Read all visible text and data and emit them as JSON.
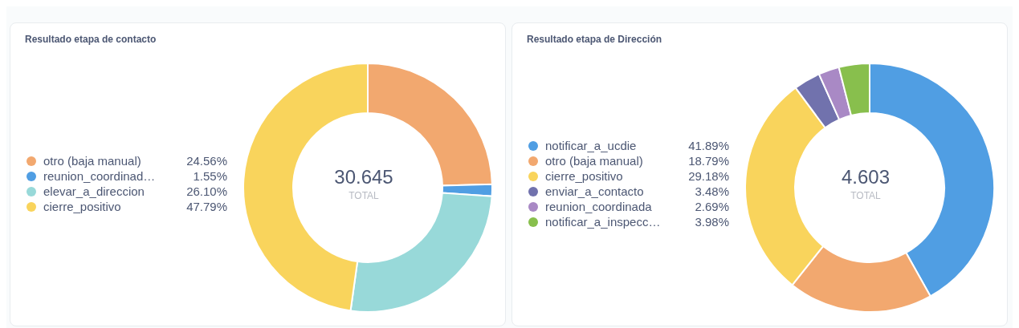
{
  "chart_data": [
    {
      "type": "donut",
      "title": "Resultado etapa de contacto",
      "categories": [
        "otro (baja manual)",
        "reunion_coordinad…",
        "elevar_a_direccion",
        "cierre_positivo"
      ],
      "values": [
        24.56,
        1.55,
        26.1,
        47.79
      ],
      "value_labels": [
        "24.56%",
        "1.55%",
        "26.10%",
        "47.79%"
      ],
      "colors": [
        "#f2a86f",
        "#509ee3",
        "#98d9d9",
        "#f9d45c"
      ],
      "annotations": [
        "30.645",
        "TOTAL"
      ],
      "legend": "left"
    },
    {
      "type": "donut",
      "title": "Resultado etapa de Dirección",
      "categories": [
        "notificar_a_ucdie",
        "otro (baja manual)",
        "cierre_positivo",
        "enviar_a_contacto",
        "reunion_coordinada",
        "notificar_a_inspecc…"
      ],
      "values": [
        41.89,
        18.79,
        29.18,
        3.48,
        2.69,
        3.98
      ],
      "value_labels": [
        "41.89%",
        "18.79%",
        "29.18%",
        "3.48%",
        "2.69%",
        "3.98%"
      ],
      "colors": [
        "#509ee3",
        "#f2a86f",
        "#f9d45c",
        "#7172ad",
        "#a989c5",
        "#88bf4d"
      ],
      "annotations": [
        "4.603",
        "TOTAL"
      ],
      "legend": "left"
    }
  ]
}
